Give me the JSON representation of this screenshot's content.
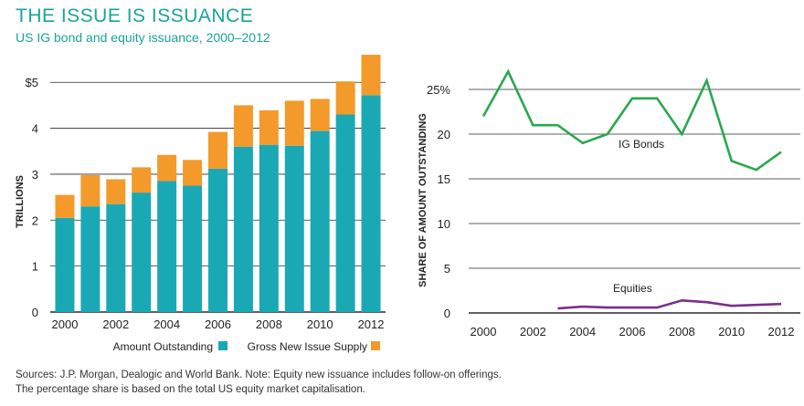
{
  "header": {
    "title": "THE ISSUE IS ISSUANCE",
    "subtitle": "US IG bond and equity issuance, 2000–2012"
  },
  "footer": {
    "line1": "Sources: J.P. Morgan, Dealogic and World Bank. Note: Equity new issuance includes follow-on offerings.",
    "line2": "The percentage share is based on the total US equity market capitalisation."
  },
  "colors": {
    "title": "#1aa39a",
    "amount_outstanding": "#1aa9b4",
    "gross_new_issue": "#f39a2b",
    "ig_bonds": "#2aa84e",
    "equities": "#7a2e8c",
    "grid": "#2a2a2a"
  },
  "chart_data": [
    {
      "type": "bar",
      "stacked": true,
      "ylabel": "TRILLIONS",
      "ylim": [
        0,
        5.6
      ],
      "yticks": [
        0,
        1,
        2,
        3,
        4,
        5
      ],
      "ytick_labels": [
        "0",
        "1",
        "2",
        "3",
        "4",
        "$5"
      ],
      "categories": [
        "2000",
        "2001",
        "2002",
        "2003",
        "2004",
        "2005",
        "2006",
        "2007",
        "2008",
        "2009",
        "2010",
        "2011",
        "2012"
      ],
      "xtick_labels": [
        "2000",
        "2002",
        "2004",
        "2006",
        "2008",
        "2010",
        "2012"
      ],
      "series": [
        {
          "name": "Amount Outstanding",
          "values": [
            2.05,
            2.3,
            2.35,
            2.6,
            2.85,
            2.75,
            3.12,
            3.6,
            3.64,
            3.62,
            3.94,
            4.3,
            4.72
          ]
        },
        {
          "name": "Gross New Issue Supply",
          "values": [
            0.5,
            0.68,
            0.54,
            0.55,
            0.57,
            0.56,
            0.8,
            0.9,
            0.75,
            0.98,
            0.7,
            0.72,
            0.88
          ]
        }
      ],
      "legend": [
        "Amount Outstanding",
        "Gross New Issue Supply"
      ],
      "legend_position": "bottom"
    },
    {
      "type": "line",
      "ylabel": "SHARE OF AMOUNT OUTSTANDING",
      "ylim": [
        0,
        26
      ],
      "yticks": [
        0,
        5,
        10,
        15,
        20,
        25
      ],
      "ytick_labels": [
        "0",
        "5",
        "10",
        "15",
        "20",
        "25%"
      ],
      "xlim": [
        2000,
        2012
      ],
      "xtick_labels": [
        "2000",
        "2002",
        "2004",
        "2006",
        "2008",
        "2010",
        "2012"
      ],
      "series": [
        {
          "name": "IG Bonds",
          "x": [
            2000,
            2001,
            2002,
            2003,
            2004,
            2005,
            2006,
            2007,
            2008,
            2009,
            2010,
            2011,
            2012
          ],
          "values": [
            22,
            27,
            21,
            21,
            19,
            20,
            24,
            24,
            20,
            26,
            17,
            16,
            18
          ]
        },
        {
          "name": "Equities",
          "x": [
            2003,
            2004,
            2005,
            2006,
            2007,
            2008,
            2009,
            2010,
            2011,
            2012
          ],
          "values": [
            0.5,
            0.7,
            0.6,
            0.6,
            0.6,
            1.4,
            1.2,
            0.8,
            0.9,
            1.0
          ]
        }
      ]
    }
  ]
}
